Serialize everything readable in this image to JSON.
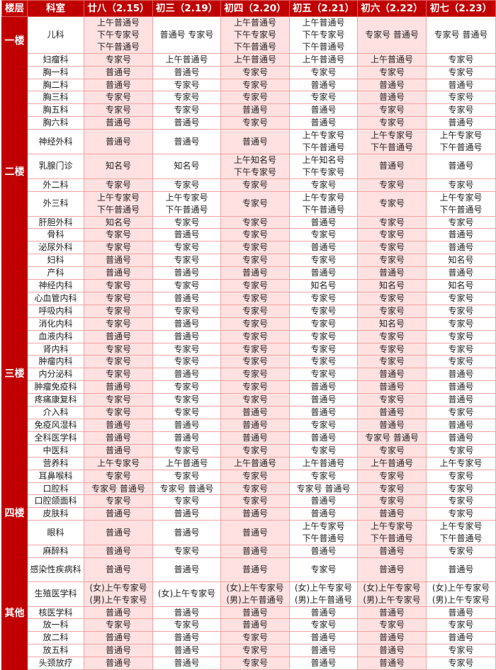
{
  "header": {
    "floor": "楼层",
    "dept": "科室",
    "dates": [
      "廿八（2.15）",
      "初三（2.19）",
      "初四（2.20）",
      "初五（2.21）",
      "初六（2.22）",
      "初七（2.23）"
    ]
  },
  "colors": {
    "header_bg": "#c00000",
    "alt_column_bg": "#ffe1e1",
    "border": "#f2a3a3"
  },
  "floors": [
    {
      "name": "一楼",
      "rows": [
        {
          "dept": "儿科",
          "cells": [
            "上午普通号\n下午专家号\n下午普通号",
            "普通号 专家号",
            "上午普通号\n下午专家号\n下午普通号",
            "上午普通号\n下午专家号\n下午普通号",
            "专家号 普通号",
            "专家号 普通号"
          ]
        },
        {
          "dept": "妇瘤科",
          "cells": [
            "专家号",
            "上午普通号",
            "上午普通号",
            "上午普通号",
            "上午普通号",
            "专家号"
          ]
        }
      ]
    },
    {
      "name": "二楼",
      "rows": [
        {
          "dept": "胸一科",
          "cells": [
            "普通号",
            "普通号",
            "专家号",
            "专家号",
            "专家号",
            "专家号"
          ]
        },
        {
          "dept": "胸二科",
          "cells": [
            "普通号",
            "专家号",
            "专家号",
            "普通号",
            "普通号",
            "普通号"
          ]
        },
        {
          "dept": "胸三科",
          "cells": [
            "专家号",
            "专家号",
            "专家号",
            "专家号",
            "普通号",
            "专家号"
          ]
        },
        {
          "dept": "胸五科",
          "cells": [
            "专家号",
            "专家号",
            "普通号",
            "普通号",
            "专家号",
            "专家号"
          ]
        },
        {
          "dept": "胸六科",
          "cells": [
            "普通号",
            "普通号",
            "专家号",
            "普通号",
            "专家号",
            "普通号"
          ]
        },
        {
          "dept": "神经外科",
          "cells": [
            "普通号",
            "普通号",
            "普通号",
            "上午专家号\n下午普通号",
            "上午专家号\n下午普通号",
            "上午专家号\n下午普通号"
          ]
        },
        {
          "dept": "乳腺门诊",
          "cells": [
            "知名号",
            "知名号",
            "上午知名号\n下午专家号",
            "上午知名号\n下午专家号",
            "普通号",
            "普通号"
          ]
        },
        {
          "dept": "外二科",
          "cells": [
            "专家号",
            "专家号",
            "专家号",
            "专家号",
            "专家号",
            "专家号"
          ]
        },
        {
          "dept": "外三科",
          "cells": [
            "上午专家号\n下午普通号",
            "上午专家号\n下午普通号",
            "专家号",
            "上午专家号\n下午普通号",
            "专家号",
            "上午专家号\n下午普通号"
          ]
        },
        {
          "dept": "肝胆外科",
          "cells": [
            "知名号",
            "专家号",
            "专家号",
            "普通号",
            "专家号",
            "专家号"
          ]
        },
        {
          "dept": "骨科",
          "cells": [
            "专家号",
            "普通号",
            "专家号",
            "专家号",
            "专家号",
            "普通号"
          ]
        },
        {
          "dept": "泌尿外科",
          "cells": [
            "专家号",
            "专家号",
            "专家号",
            "普通号",
            "专家号",
            "普通号"
          ]
        },
        {
          "dept": "妇科",
          "cells": [
            "普通号",
            "专家号",
            "专家号",
            "专家号",
            "专家号",
            "知名号"
          ]
        },
        {
          "dept": "产科",
          "cells": [
            "普通号",
            "普通号",
            "普通号",
            "普通号",
            "普通号",
            "普通号"
          ]
        }
      ]
    },
    {
      "name": "三楼",
      "rows": [
        {
          "dept": "神经内科",
          "cells": [
            "专家号",
            "专家号",
            "专家号",
            "知名号",
            "知名号",
            "知名号"
          ]
        },
        {
          "dept": "心血管内科",
          "cells": [
            "专家号",
            "普通号",
            "专家号",
            "专家号",
            "专家号",
            "专家号"
          ]
        },
        {
          "dept": "呼吸内科",
          "cells": [
            "专家号",
            "专家号",
            "专家号",
            "专家号",
            "专家号",
            "专家号"
          ]
        },
        {
          "dept": "消化内科",
          "cells": [
            "专家号",
            "普通号",
            "专家号",
            "专家号",
            "知名号",
            "专家号"
          ]
        },
        {
          "dept": "血液内科",
          "cells": [
            "普通号",
            "普通号",
            "专家号",
            "专家号",
            "专家号",
            "专家号"
          ]
        },
        {
          "dept": "肾内科",
          "cells": [
            "专家号",
            "专家号",
            "专家号",
            "专家号",
            "专家号",
            "专家号"
          ]
        },
        {
          "dept": "肿瘤内科",
          "cells": [
            "专家号",
            "专家号",
            "专家号",
            "专家号",
            "专家号",
            "专家号"
          ]
        },
        {
          "dept": "内分泌科",
          "cells": [
            "专家号",
            "普通号",
            "专家号",
            "专家号",
            "普通号",
            "普通号"
          ]
        },
        {
          "dept": "肿瘤免疫科",
          "cells": [
            "普通号",
            "专家号",
            "专家号",
            "普通号",
            "普通号",
            "普通号"
          ]
        },
        {
          "dept": "疼痛康复科",
          "cells": [
            "专家号",
            "专家号",
            "专家号",
            "普通号",
            "专家号",
            "普通号"
          ]
        },
        {
          "dept": "介入科",
          "cells": [
            "专家号",
            "专家号",
            "普通号",
            "普通号",
            "普通号",
            "专家号"
          ]
        },
        {
          "dept": "免疫风湿科",
          "cells": [
            "普通号",
            "普通号",
            "普通号",
            "专家号",
            "普通号",
            "普通号"
          ]
        },
        {
          "dept": "全科医学科",
          "cells": [
            "普通号",
            "普通号",
            "普通号",
            "普通号",
            "专家号 普通号",
            "普通号"
          ]
        },
        {
          "dept": "中医科",
          "cells": [
            "普通号",
            "专家号",
            "专家号",
            "专家号",
            "专家号",
            "专家号"
          ]
        },
        {
          "dept": "营养科",
          "cells": [
            "上午专家号",
            "上午普通号",
            "上午普通号",
            "上午普通号",
            "上午普通号",
            "上午专家号"
          ]
        }
      ]
    },
    {
      "name": "四楼",
      "rows": [
        {
          "dept": "耳鼻喉科",
          "cells": [
            "专家号",
            "专家号",
            "专家号",
            "专家号",
            "专家号",
            "专家号"
          ]
        },
        {
          "dept": "口腔科",
          "cells": [
            "专家号 普通号",
            "专家号 普通号",
            "专家号",
            "专家号 普通号",
            "专家号",
            "专家号"
          ]
        },
        {
          "dept": "口腔颌面科",
          "cells": [
            "专家号",
            "专家号",
            "专家号",
            "普通号",
            "专家号",
            "专家号"
          ]
        },
        {
          "dept": "皮肤科",
          "cells": [
            "普通号",
            "普通号",
            "普通号",
            "普通号",
            "普通号",
            "专家号"
          ]
        },
        {
          "dept": "眼科",
          "cells": [
            "普通号",
            "普通号",
            "普通号",
            "上午专家号\n下午普通号",
            "上午专家号\n下午普通号",
            "上午专家号\n下午普通号"
          ]
        },
        {
          "dept": "麻醉科",
          "cells": [
            "普通号",
            "专家号",
            "普通号",
            "普通号",
            "普通号",
            "专家号"
          ]
        }
      ]
    },
    {
      "name": "其他",
      "rows": [
        {
          "dept": "感染性疾病科",
          "cells": [
            "普通号",
            "普通号",
            "普通号",
            "专家号",
            "普通号",
            "普通号"
          ]
        },
        {
          "dept": "生殖医学科",
          "cells": [
            "(女)上午专家号\n(男)上午专家号",
            "(女)上午专家号",
            "(女)上午专家号\n(男)上午普通号",
            "(女)上午专家号\n(男)上午普通号",
            "(女)上午专家号\n(男)上午专家号",
            "(女)上午专家号\n(男)上午专家号"
          ]
        },
        {
          "dept": "核医学科",
          "cells": [
            "普通号",
            "普通号",
            "普通号",
            "普通号",
            "普通号",
            "普通号"
          ]
        },
        {
          "dept": "放一科",
          "cells": [
            "专家号",
            "专家号",
            "普通号",
            "专家号",
            "专家号",
            "专家号"
          ]
        },
        {
          "dept": "放二科",
          "cells": [
            "普通号",
            "普通号",
            "专家号",
            "普通号",
            "普通号",
            "普通号"
          ]
        },
        {
          "dept": "放五科",
          "cells": [
            "普通号",
            "普通号",
            "专家号",
            "普通号",
            "普通号",
            "专家号"
          ]
        },
        {
          "dept": "头颈放疗",
          "cells": [
            "普通号",
            "普通号",
            "专家号",
            "普通号",
            "普通号",
            "专家号"
          ]
        }
      ]
    }
  ]
}
